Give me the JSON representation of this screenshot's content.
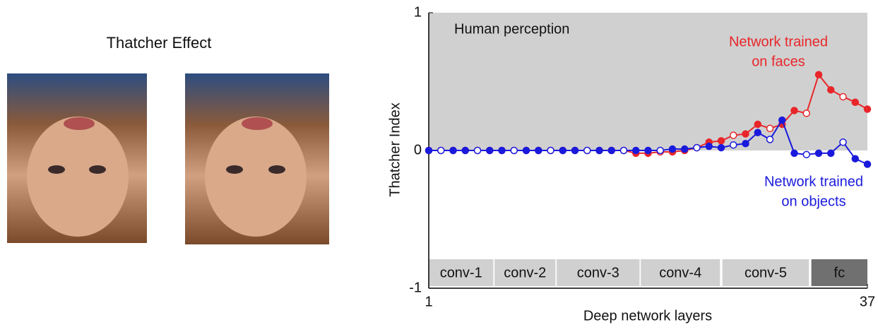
{
  "panel_title": "Thatcher Effect",
  "chart_data": {
    "type": "line",
    "x_label": "Deep network layers",
    "y_label": "Thatcher Index",
    "x": [
      1,
      2,
      3,
      4,
      5,
      6,
      7,
      8,
      9,
      10,
      11,
      12,
      13,
      14,
      15,
      16,
      17,
      18,
      19,
      20,
      21,
      22,
      23,
      24,
      25,
      26,
      27,
      28,
      29,
      30,
      31,
      32,
      33,
      34,
      35,
      36,
      37
    ],
    "xlim": [
      1,
      37
    ],
    "xticks": [
      1,
      37
    ],
    "ylim": [
      -1,
      1
    ],
    "yticks": [
      -1,
      0,
      1
    ],
    "shade": {
      "from": 0,
      "to": 1,
      "color": "#d0d0d0",
      "label": "Human perception"
    },
    "layer_groups": [
      {
        "label": "conv-1",
        "from": 1,
        "to": 6.3,
        "color": "#d0d0d0"
      },
      {
        "label": "conv-2",
        "from": 6.4,
        "to": 11.4,
        "color": "#d0d0d0"
      },
      {
        "label": "conv-3",
        "from": 11.5,
        "to": 18.3,
        "color": "#d0d0d0"
      },
      {
        "label": "conv-4",
        "from": 18.4,
        "to": 24.9,
        "color": "#d0d0d0"
      },
      {
        "label": "conv-5",
        "from": 25.1,
        "to": 32.2,
        "color": "#d0d0d0"
      },
      {
        "label": "fc",
        "from": 32.4,
        "to": 37,
        "color": "#707070"
      }
    ],
    "series": [
      {
        "name": [
          "Network trained",
          "on faces"
        ],
        "color": "#e8262a",
        "values": [
          0,
          0,
          0,
          0,
          0,
          0,
          0,
          0,
          0,
          0,
          0,
          0,
          0,
          0,
          0,
          0,
          0,
          -0.02,
          -0.02,
          -0.01,
          -0.01,
          0,
          0.02,
          0.06,
          0.07,
          0.11,
          0.12,
          0.19,
          0.16,
          0.19,
          0.29,
          0.27,
          0.55,
          0.44,
          0.39,
          0.35,
          0.3
        ]
      },
      {
        "name": [
          "Network trained",
          "on objects"
        ],
        "color": "#1a1adc",
        "values": [
          0,
          0,
          0,
          0,
          0,
          0,
          0,
          0,
          0,
          0,
          0,
          0,
          0,
          0,
          0,
          0,
          0,
          0,
          0,
          0,
          0.01,
          0.01,
          0.02,
          0.03,
          0.02,
          0.04,
          0.05,
          0.13,
          0.08,
          0.22,
          -0.02,
          -0.03,
          -0.02,
          -0.02,
          0.06,
          -0.06,
          -0.1
        ]
      }
    ]
  }
}
